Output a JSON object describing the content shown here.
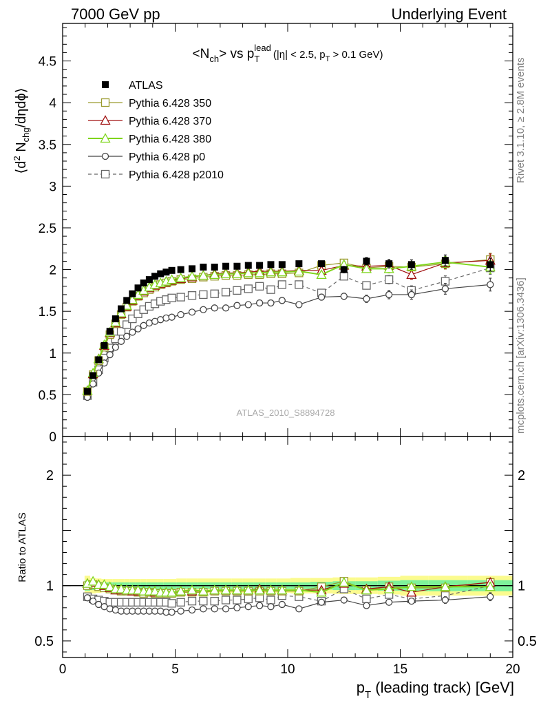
{
  "header": {
    "left": "7000 GeV pp",
    "right": "Underlying Event"
  },
  "side_labels": {
    "rivet": "Rivet 3.1.10, ≥ 2.8M events",
    "mcplots": "mcplots.cern.ch [arXiv:1306.3436]"
  },
  "chart_data": [
    {
      "type": "scatter",
      "panel": "main",
      "title": {
        "lhs": "<N",
        "lhs_sub": "ch",
        "mid": "> vs p",
        "mid_sub": "T",
        "mid_sup": "lead",
        "cond": "(|η| < 2.5, p",
        "cond_sub": "T",
        "cond_tail": " > 0.1 GeV)"
      },
      "watermark": "ATLAS_2010_S8894728",
      "ylabel": {
        "p1": "⟨d",
        "sup": "2",
        "p2": " N",
        "sub": "chg",
        "p3": "/dηdϕ⟩"
      },
      "ylim": [
        0,
        4.95
      ],
      "yticks": [
        "0",
        "0.5",
        "1",
        "1.5",
        "2",
        "2.5",
        "3",
        "3.5",
        "4",
        "4.5"
      ],
      "legend_position": "top-left",
      "x": [
        1.1,
        1.35,
        1.6,
        1.85,
        2.1,
        2.35,
        2.6,
        2.85,
        3.1,
        3.35,
        3.6,
        3.85,
        4.1,
        4.35,
        4.6,
        4.85,
        5.25,
        5.75,
        6.25,
        6.75,
        7.25,
        7.75,
        8.25,
        8.75,
        9.25,
        9.75,
        10.5,
        11.5,
        12.5,
        13.5,
        14.5,
        15.5,
        17.0,
        19.0
      ],
      "series": [
        {
          "name": "ATLAS",
          "color": "#000000",
          "marker": "filled-square",
          "values": [
            0.54,
            0.73,
            0.92,
            1.09,
            1.26,
            1.41,
            1.53,
            1.63,
            1.71,
            1.78,
            1.84,
            1.88,
            1.92,
            1.95,
            1.97,
            1.99,
            2.0,
            2.01,
            2.03,
            2.03,
            2.04,
            2.04,
            2.05,
            2.05,
            2.06,
            2.06,
            2.07,
            2.07,
            2.0,
            2.1,
            2.07,
            2.06,
            2.11,
            2.06
          ]
        },
        {
          "name": "Pythia 6.428 350",
          "color": "#9a9a2e",
          "marker": "open-square",
          "values": [
            0.54,
            0.74,
            0.91,
            1.07,
            1.22,
            1.35,
            1.46,
            1.55,
            1.62,
            1.68,
            1.72,
            1.76,
            1.79,
            1.82,
            1.84,
            1.86,
            1.88,
            1.89,
            1.91,
            1.92,
            1.93,
            1.93,
            1.94,
            1.94,
            1.95,
            1.95,
            1.96,
            2.05,
            2.08,
            2.02,
            2.04,
            2.03,
            2.07,
            2.12
          ]
        },
        {
          "name": "Pythia 6.428 370",
          "color": "#a01010",
          "marker": "open-triangle",
          "values": [
            0.55,
            0.75,
            0.93,
            1.09,
            1.24,
            1.36,
            1.47,
            1.56,
            1.63,
            1.69,
            1.74,
            1.78,
            1.81,
            1.83,
            1.85,
            1.87,
            1.89,
            1.91,
            1.93,
            1.95,
            1.96,
            1.96,
            1.97,
            1.98,
            1.98,
            1.98,
            1.99,
            1.99,
            2.05,
            2.04,
            2.05,
            1.94,
            2.08,
            2.11
          ]
        },
        {
          "name": "Pythia 6.428 380",
          "color": "#7fd51c",
          "marker": "open-triangle",
          "values": [
            0.55,
            0.76,
            0.93,
            1.1,
            1.25,
            1.37,
            1.48,
            1.57,
            1.64,
            1.7,
            1.75,
            1.79,
            1.82,
            1.84,
            1.86,
            1.88,
            1.9,
            1.92,
            1.93,
            1.94,
            1.95,
            1.95,
            1.96,
            1.96,
            1.97,
            1.97,
            1.98,
            1.94,
            2.06,
            2.01,
            2.01,
            2.04,
            2.09,
            2.03
          ]
        },
        {
          "name": "Pythia 6.428 p0",
          "color": "#444444",
          "marker": "open-circle",
          "values": [
            0.47,
            0.63,
            0.76,
            0.88,
            0.98,
            1.07,
            1.14,
            1.2,
            1.25,
            1.29,
            1.33,
            1.36,
            1.38,
            1.4,
            1.42,
            1.43,
            1.46,
            1.49,
            1.52,
            1.54,
            1.54,
            1.57,
            1.58,
            1.6,
            1.6,
            1.63,
            1.58,
            1.67,
            1.68,
            1.65,
            1.7,
            1.7,
            1.77,
            1.82
          ]
        },
        {
          "name": "Pythia 6.428 p2010",
          "color": "#666666",
          "marker": "open-square",
          "dashed": true,
          "values": [
            0.49,
            0.65,
            0.8,
            0.94,
            1.06,
            1.17,
            1.26,
            1.34,
            1.41,
            1.47,
            1.52,
            1.56,
            1.59,
            1.62,
            1.64,
            1.66,
            1.67,
            1.69,
            1.7,
            1.71,
            1.73,
            1.75,
            1.77,
            1.8,
            1.76,
            1.82,
            1.82,
            1.72,
            1.92,
            1.81,
            1.88,
            1.75,
            1.86,
            2.02
          ]
        }
      ]
    },
    {
      "type": "scatter",
      "panel": "ratio",
      "ylabel": "Ratio to ATLAS",
      "xlabel": {
        "p1": "p",
        "sub": "T",
        "p2": " (leading track) [GeV]"
      },
      "xlim": [
        0,
        20
      ],
      "xticks": [
        "0",
        "5",
        "10",
        "15",
        "20"
      ],
      "ylim": [
        0.35,
        2.35
      ],
      "yticks": [
        "0.5",
        "1",
        "2"
      ],
      "bands": {
        "inner_color": "#7ef29a",
        "outer_color": "#fbfb8e",
        "inner_halfwidth": [
          0.045,
          0.04,
          0.035,
          0.03,
          0.03,
          0.03,
          0.03,
          0.03,
          0.03,
          0.03,
          0.03,
          0.03,
          0.03,
          0.03,
          0.03,
          0.03,
          0.03,
          0.03,
          0.03,
          0.03,
          0.03,
          0.03,
          0.03,
          0.03,
          0.03,
          0.03,
          0.03,
          0.035,
          0.04,
          0.04,
          0.045,
          0.05,
          0.05,
          0.05
        ],
        "outer_halfwidth": [
          0.09,
          0.07,
          0.065,
          0.06,
          0.06,
          0.06,
          0.06,
          0.06,
          0.06,
          0.06,
          0.06,
          0.06,
          0.06,
          0.06,
          0.06,
          0.06,
          0.065,
          0.065,
          0.065,
          0.065,
          0.065,
          0.065,
          0.065,
          0.065,
          0.065,
          0.065,
          0.07,
          0.07,
          0.075,
          0.075,
          0.08,
          0.09,
          0.09,
          0.09
        ]
      },
      "series": [
        {
          "name": "Pythia 6.428 350",
          "values": [
            1.0,
            1.01,
            0.99,
            0.98,
            0.97,
            0.96,
            0.95,
            0.95,
            0.95,
            0.94,
            0.93,
            0.94,
            0.93,
            0.93,
            0.93,
            0.93,
            0.94,
            0.94,
            0.94,
            0.95,
            0.95,
            0.95,
            0.95,
            0.95,
            0.95,
            0.95,
            0.95,
            0.99,
            1.04,
            0.96,
            0.99,
            0.98,
            0.98,
            1.03
          ]
        },
        {
          "name": "Pythia 6.428 370",
          "values": [
            1.02,
            1.03,
            1.01,
            1.0,
            0.98,
            0.96,
            0.96,
            0.96,
            0.95,
            0.95,
            0.95,
            0.95,
            0.94,
            0.94,
            0.94,
            0.94,
            0.95,
            0.95,
            0.95,
            0.96,
            0.96,
            0.96,
            0.96,
            0.97,
            0.96,
            0.96,
            0.96,
            0.96,
            1.02,
            0.97,
            0.99,
            0.94,
            0.99,
            1.03
          ]
        },
        {
          "name": "Pythia 6.428 380",
          "values": [
            1.02,
            1.04,
            1.01,
            1.01,
            0.99,
            0.97,
            0.97,
            0.96,
            0.96,
            0.96,
            0.95,
            0.95,
            0.95,
            0.94,
            0.94,
            0.94,
            0.95,
            0.96,
            0.95,
            0.96,
            0.96,
            0.96,
            0.96,
            0.96,
            0.96,
            0.96,
            0.96,
            0.94,
            1.03,
            0.96,
            0.97,
            0.99,
            0.99,
            0.99
          ]
        },
        {
          "name": "Pythia 6.428 p0",
          "values": [
            0.89,
            0.86,
            0.83,
            0.81,
            0.79,
            0.78,
            0.77,
            0.77,
            0.77,
            0.77,
            0.77,
            0.77,
            0.77,
            0.77,
            0.76,
            0.76,
            0.77,
            0.78,
            0.79,
            0.79,
            0.79,
            0.8,
            0.81,
            0.82,
            0.81,
            0.83,
            0.79,
            0.85,
            0.87,
            0.82,
            0.85,
            0.86,
            0.87,
            0.9
          ]
        },
        {
          "name": "Pythia 6.428 p2010",
          "values": [
            0.9,
            0.88,
            0.87,
            0.86,
            0.85,
            0.85,
            0.85,
            0.85,
            0.85,
            0.85,
            0.85,
            0.85,
            0.85,
            0.85,
            0.85,
            0.84,
            0.85,
            0.86,
            0.86,
            0.86,
            0.87,
            0.87,
            0.88,
            0.89,
            0.87,
            0.91,
            0.9,
            0.86,
            0.97,
            0.88,
            0.92,
            0.88,
            0.91,
            1.0
          ]
        }
      ]
    }
  ]
}
